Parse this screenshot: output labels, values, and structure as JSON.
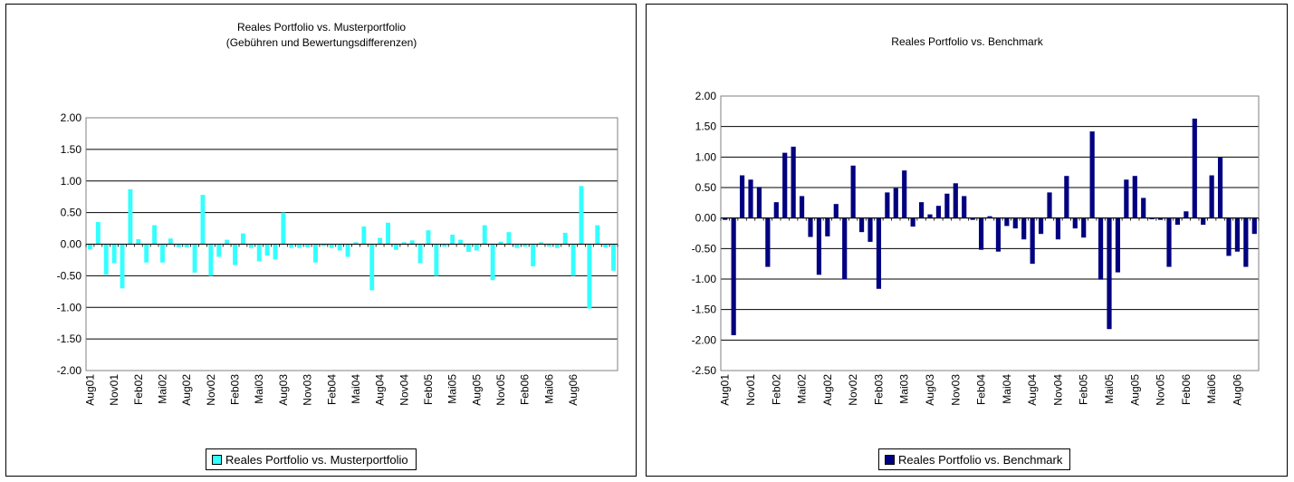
{
  "chart_data": [
    {
      "type": "bar",
      "title": "Reales Portfolio vs. Musterportfolio",
      "subtitle": "(Gebühren und Bewertungsdifferenzen)",
      "legend_position": "bottom",
      "grid": true,
      "ylim": [
        -2.0,
        2.0
      ],
      "yticks": [
        "2.00",
        "1.50",
        "1.00",
        "0.50",
        "0.00",
        "-0.50",
        "-1.00",
        "-1.50",
        "-2.00"
      ],
      "xtick_labels": [
        "Aug01",
        "Nov01",
        "Feb02",
        "Mai02",
        "Aug02",
        "Nov02",
        "Feb03",
        "Mai03",
        "Aug03",
        "Nov03",
        "Feb04",
        "Mai04",
        "Aug04",
        "Nov04",
        "Feb05",
        "Mai05",
        "Aug05",
        "Nov05",
        "Feb06",
        "Mai06",
        "Aug06"
      ],
      "color": "#33FFFF",
      "series": [
        {
          "name": "Reales Portfolio vs. Musterportfolio",
          "values": [
            -0.08,
            0.35,
            -0.48,
            -0.3,
            -0.7,
            0.87,
            0.08,
            -0.29,
            0.3,
            -0.29,
            0.09,
            -0.05,
            -0.05,
            -0.45,
            0.78,
            -0.5,
            -0.2,
            0.07,
            -0.33,
            0.17,
            -0.06,
            -0.27,
            -0.18,
            -0.24,
            0.5,
            -0.06,
            -0.06,
            -0.05,
            -0.29,
            -0.03,
            -0.06,
            -0.1,
            -0.2,
            0.03,
            0.28,
            -0.73,
            0.1,
            0.34,
            -0.09,
            0.03,
            0.06,
            -0.3,
            0.22,
            -0.5,
            -0.04,
            0.15,
            0.07,
            -0.12,
            -0.1,
            0.3,
            -0.57,
            0.04,
            0.19,
            -0.06,
            -0.04,
            -0.35,
            0.03,
            -0.04,
            -0.06,
            0.18,
            -0.5,
            0.92,
            -1.02,
            0.3,
            -0.05,
            -0.42
          ]
        }
      ]
    },
    {
      "type": "bar",
      "title": "Reales Portfolio vs. Benchmark",
      "legend_position": "bottom",
      "grid": true,
      "ylim": [
        -2.5,
        2.0
      ],
      "yticks": [
        "2.00",
        "1.50",
        "1.00",
        "0.50",
        "0.00",
        "-0.50",
        "-1.00",
        "-1.50",
        "-2.00",
        "-2.50"
      ],
      "xtick_labels": [
        "Aug01",
        "Nov01",
        "Feb02",
        "Mai02",
        "Aug02",
        "Nov02",
        "Feb03",
        "Mai03",
        "Aug03",
        "Nov03",
        "Feb04",
        "Mai04",
        "Aug04",
        "Nov04",
        "Feb05",
        "Mai05",
        "Aug05",
        "Nov05",
        "Feb06",
        "Mai06",
        "Aug06"
      ],
      "color": "#000080",
      "series": [
        {
          "name": "Reales Portfolio vs. Benchmark",
          "values": [
            -0.03,
            -1.92,
            0.7,
            0.63,
            0.51,
            -0.8,
            0.26,
            1.07,
            1.17,
            0.36,
            -0.31,
            -0.93,
            -0.3,
            0.23,
            -1.0,
            0.86,
            -0.23,
            -0.39,
            -1.16,
            0.42,
            0.49,
            0.78,
            -0.14,
            0.26,
            0.06,
            0.2,
            0.4,
            0.57,
            0.36,
            -0.03,
            -0.52,
            0.03,
            -0.55,
            -0.13,
            -0.17,
            -0.35,
            -0.75,
            -0.26,
            0.42,
            -0.35,
            0.69,
            -0.17,
            -0.32,
            1.42,
            -1.01,
            -1.82,
            -0.89,
            0.63,
            0.69,
            0.33,
            -0.02,
            -0.03,
            -0.8,
            -0.11,
            0.11,
            1.63,
            -0.11,
            0.7,
            0.99,
            -0.62,
            -0.55,
            -0.8,
            -0.26
          ]
        }
      ]
    }
  ]
}
